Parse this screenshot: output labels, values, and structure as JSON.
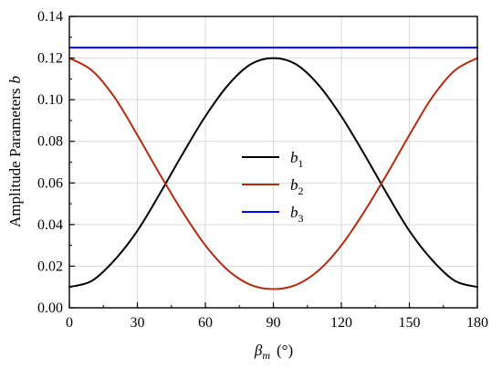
{
  "chart_data": {
    "type": "line",
    "xlabel": {
      "symbol": "β",
      "sub": "m",
      "unit": "(°)"
    },
    "ylabel": {
      "text": "Amplitude Parameters",
      "var": "b"
    },
    "xlim": [
      0,
      180
    ],
    "ylim": [
      0,
      0.14
    ],
    "xticks": [
      0,
      30,
      60,
      90,
      120,
      150,
      180
    ],
    "xtick_labels": [
      "0",
      "30",
      "60",
      "90",
      "120",
      "150",
      "180"
    ],
    "yticks": [
      0,
      0.02,
      0.04,
      0.06,
      0.08,
      0.1,
      0.12,
      0.14
    ],
    "ytick_labels": [
      "0.00",
      "0.02",
      "0.04",
      "0.06",
      "0.08",
      "0.10",
      "0.12",
      "0.14"
    ],
    "grid": true,
    "legend_position": "center",
    "x": [
      0,
      10,
      20,
      30,
      40,
      50,
      60,
      70,
      80,
      90,
      100,
      110,
      120,
      130,
      140,
      150,
      160,
      170,
      180
    ],
    "series": [
      {
        "name": {
          "base": "b",
          "sub": "1"
        },
        "color": "#000000",
        "values": [
          0.01,
          0.013,
          0.023,
          0.037,
          0.055,
          0.074,
          0.092,
          0.107,
          0.117,
          0.12,
          0.117,
          0.107,
          0.092,
          0.074,
          0.055,
          0.037,
          0.023,
          0.013,
          0.01
        ]
      },
      {
        "name": {
          "base": "b",
          "sub": "2"
        },
        "color": "#b52a10",
        "values": [
          0.12,
          0.114,
          0.101,
          0.083,
          0.064,
          0.046,
          0.03,
          0.018,
          0.011,
          0.009,
          0.011,
          0.018,
          0.03,
          0.046,
          0.064,
          0.083,
          0.101,
          0.114,
          0.12
        ]
      },
      {
        "name": {
          "base": "b",
          "sub": "3"
        },
        "color": "#0000ff",
        "values": [
          0.125,
          0.125,
          0.125,
          0.125,
          0.125,
          0.125,
          0.125,
          0.125,
          0.125,
          0.125,
          0.125,
          0.125,
          0.125,
          0.125,
          0.125,
          0.125,
          0.125,
          0.125,
          0.125
        ]
      }
    ]
  }
}
